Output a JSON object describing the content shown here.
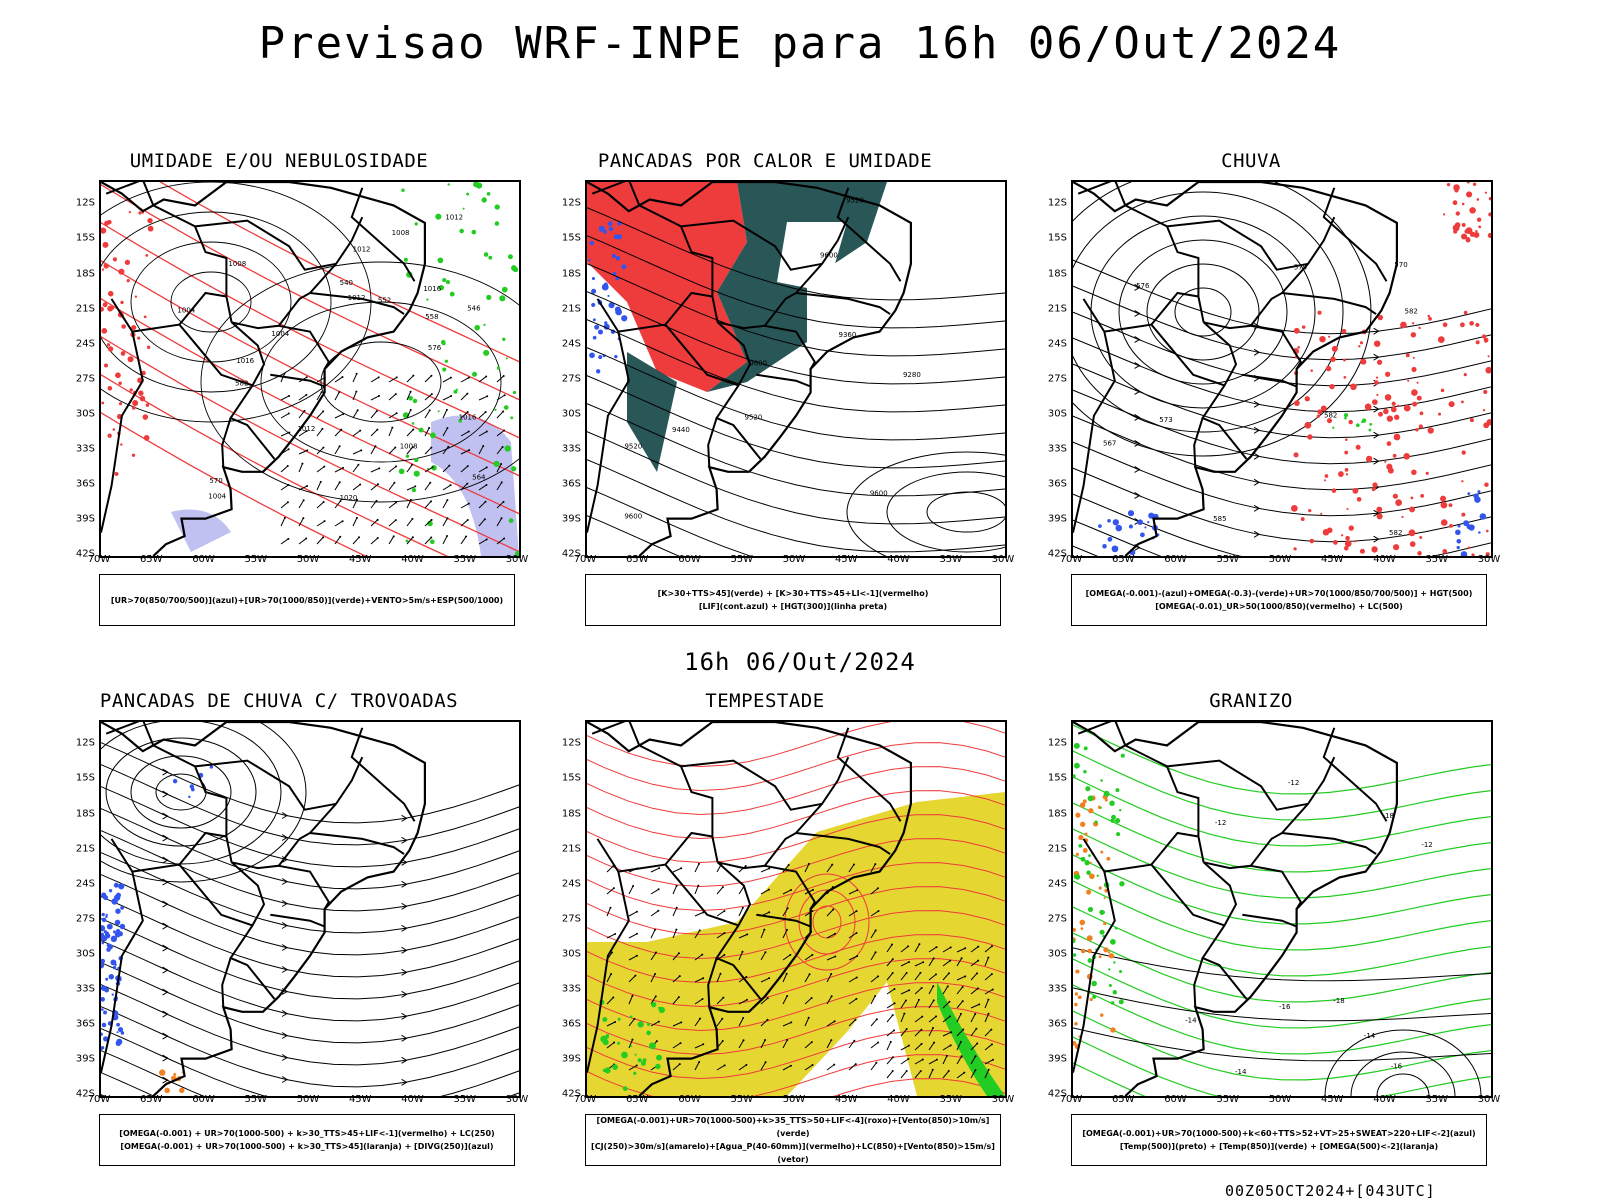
{
  "header": {
    "title": "Previsao WRF-INPE  para 16h 06/Out/2024",
    "mid_date": "16h 06/Out/2024",
    "run_stamp": "00Z05OCT2024+[043UTC]"
  },
  "axes": {
    "lat_labels": [
      "12S",
      "15S",
      "18S",
      "21S",
      "24S",
      "27S",
      "30S",
      "33S",
      "36S",
      "39S",
      "42S"
    ],
    "lon_labels": [
      "70W",
      "65W",
      "60W",
      "55W",
      "50W",
      "45W",
      "40W",
      "35W",
      "30W"
    ]
  },
  "colors": {
    "red": "#ee3b3b",
    "green": "#22cc22",
    "blue": "#3355ee",
    "lavender": "#b0b0ee",
    "darkteal": "#1e4d4d",
    "yellow": "#e6d632",
    "orange": "#f08020"
  },
  "panels": [
    {
      "title": "UMIDADE E/OU NEBULOSIDADE",
      "legend": [
        "[UR>70(850/700/500)](azul)+[UR>70(1000/850)](verde)+VENTO>5m/s+ESP(500/1000)"
      ],
      "contour_labels": [
        "1008",
        "1004",
        "1004",
        "1012",
        "1012",
        "1016",
        "1004",
        "1008",
        "1012",
        "1016",
        "1020",
        "1012",
        "1008",
        "1016",
        "582",
        "576",
        "570",
        "564",
        "558",
        "552",
        "546",
        "540"
      ]
    },
    {
      "title": "PANCADAS POR CALOR E UMIDADE",
      "legend": [
        "[K>30+TTS>45](verde) + [K>30+TTS>45+LI<-1](vermelho)",
        "[LIF](cont.azul) + [HGT(300)](linha preta)"
      ],
      "contour_labels": [
        "9600",
        "9520",
        "9600",
        "9600",
        "9520",
        "9520",
        "9440",
        "9360",
        "9280",
        "9600"
      ]
    },
    {
      "title": "CHUVA",
      "legend": [
        "[OMEGA(-0.001)-(azul)+OMEGA(-0.3)-(verde)+UR>70(1000/850/700/500)] + HGT(500)",
        "[OMEGA(-0.01)_UR>50(1000/850)(vermelho) + LC(500)"
      ],
      "contour_labels": [
        "582",
        "582",
        "579",
        "576",
        "573",
        "570",
        "567",
        "582",
        "585"
      ]
    },
    {
      "title": "PANCADAS DE CHUVA C/ TROVOADAS",
      "legend": [
        "[OMEGA(-0.001) + UR>70(1000-500) + k>30_TTS>45+LIF<-1](vermelho) + LC(250)",
        "[OMEGA(-0.001) + UR>70(1000-500) + k>30_TTS>45](laranja) + [DIVG(250)](azul)"
      ],
      "contour_labels": []
    },
    {
      "title": "TEMPESTADE",
      "legend": [
        "[OMEGA(-0.001)+UR>70(1000-500)+k>35_TTS>50+LIF<-4](roxo)+[Vento(850)>10m/s](verde)",
        "[CJ(250)>30m/s](amarelo)+[Agua_P(40-60mm)](vermelho)+LC(850)+[Vento(850)>15m/s](vetor)"
      ],
      "contour_labels": []
    },
    {
      "title": "GRANIZO",
      "legend": [
        "[OMEGA(-0.001)+UR>70(1000-500)+k<60+TTS>52+VT>25+SWEAT>220+LIF<-2](azul)",
        "[Temp(500)](preto) + [Temp(850)](verde) + [OMEGA(500)<-2](laranja)"
      ],
      "contour_labels": [
        "-12",
        "-16",
        "-18",
        "-14",
        "-12",
        "-14",
        "-16",
        "-18",
        "-12",
        "-14"
      ]
    }
  ]
}
